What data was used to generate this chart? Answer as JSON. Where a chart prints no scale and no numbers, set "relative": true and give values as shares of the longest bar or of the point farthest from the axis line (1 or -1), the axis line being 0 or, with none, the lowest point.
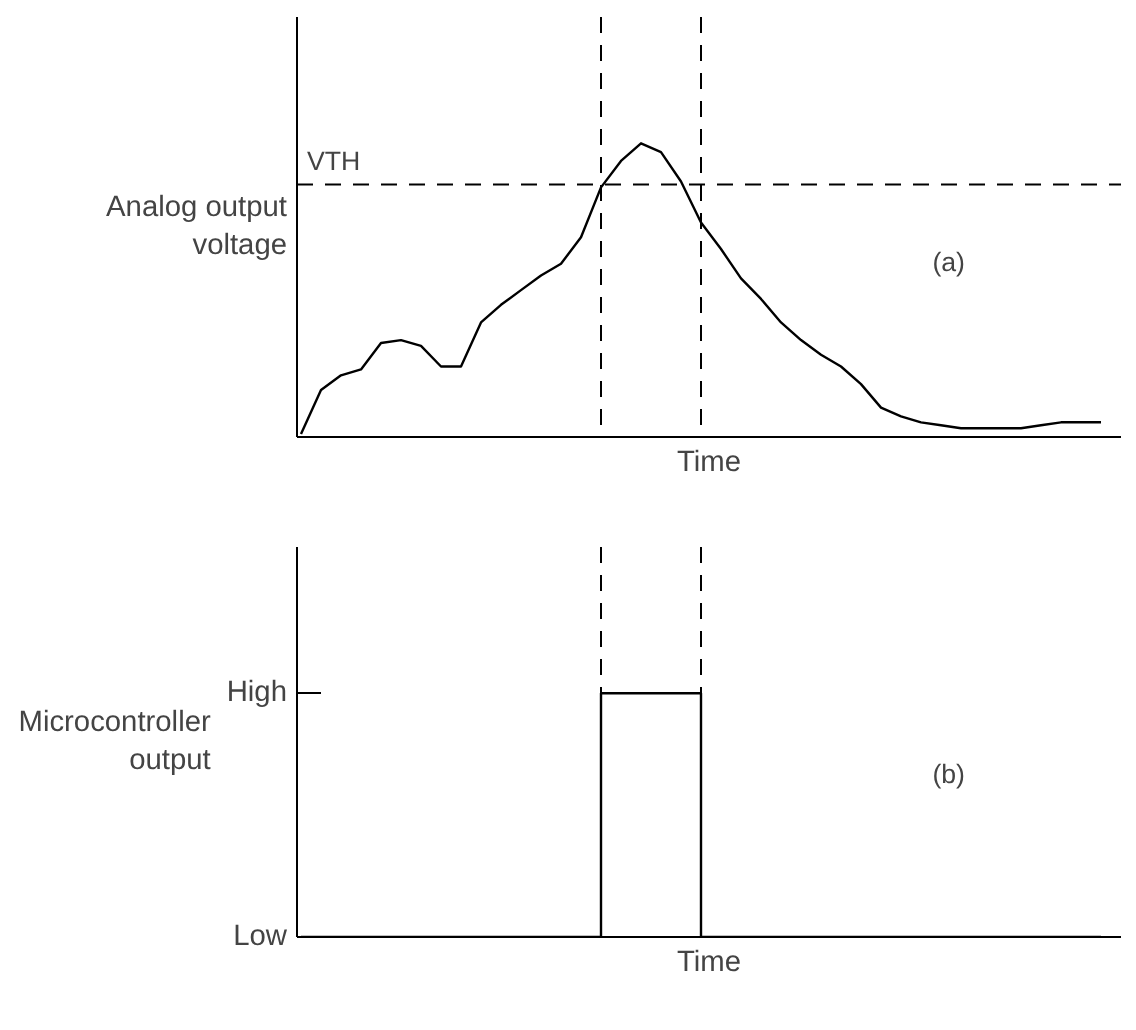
{
  "chart_data": [
    {
      "type": "line",
      "relative": true,
      "color": "#000000",
      "xlabel": "Time",
      "ylabel": "Analog output voltage",
      "annotations": [
        "(a)"
      ],
      "categories": [
        null,
        null,
        null,
        null,
        null,
        null,
        null,
        null,
        null,
        null,
        null,
        null,
        null,
        null,
        null,
        null,
        null,
        null,
        null,
        null,
        null,
        null,
        null,
        null,
        null,
        null,
        null,
        null,
        null,
        null,
        null,
        null,
        null,
        null,
        null,
        null,
        null,
        null,
        null,
        null,
        null
      ],
      "values": [
        0.01,
        0.16,
        0.21,
        0.23,
        0.32,
        0.33,
        0.31,
        0.24,
        0.24,
        0.39,
        0.45,
        0.5,
        0.55,
        0.59,
        0.68,
        0.85,
        0.94,
        1,
        0.97,
        0.87,
        0.73,
        0.64,
        0.54,
        0.47,
        0.39,
        0.33,
        0.28,
        0.24,
        0.18,
        0.1,
        0.07,
        0.05,
        0.04,
        0.03,
        0.03,
        0.03,
        0.03,
        0.04,
        0.05,
        0.05,
        0.05
      ],
      "ref_lines": [
        {
          "axis": "y",
          "value": 0.86,
          "label": "VTH",
          "line_style": "dashed",
          "color": "#000000"
        }
      ]
    },
    {
      "type": "step",
      "color": "#000000",
      "xlabel": "Time",
      "ylabel": "Microcontroller output",
      "categories": [
        null,
        null,
        null,
        null,
        null,
        null,
        null,
        null,
        null,
        null,
        null,
        null,
        null,
        null,
        null,
        null,
        null,
        null,
        null,
        null,
        null,
        null,
        null,
        null,
        null,
        null,
        null,
        null,
        null,
        null,
        null,
        null,
        null,
        null,
        null,
        null,
        null,
        null,
        null,
        null,
        null
      ],
      "values": [
        0,
        0,
        0,
        0,
        0,
        0,
        0,
        0,
        0,
        0,
        0,
        0,
        0,
        0,
        0,
        1,
        1,
        1,
        1,
        1,
        0,
        0,
        0,
        0,
        0,
        0,
        0,
        0,
        0,
        0,
        0,
        0,
        0,
        0,
        0,
        0,
        0,
        0,
        0,
        0,
        0
      ],
      "relative": true,
      "annotations": [
        "(b)",
        "High",
        "Low"
      ]
    }
  ]
}
